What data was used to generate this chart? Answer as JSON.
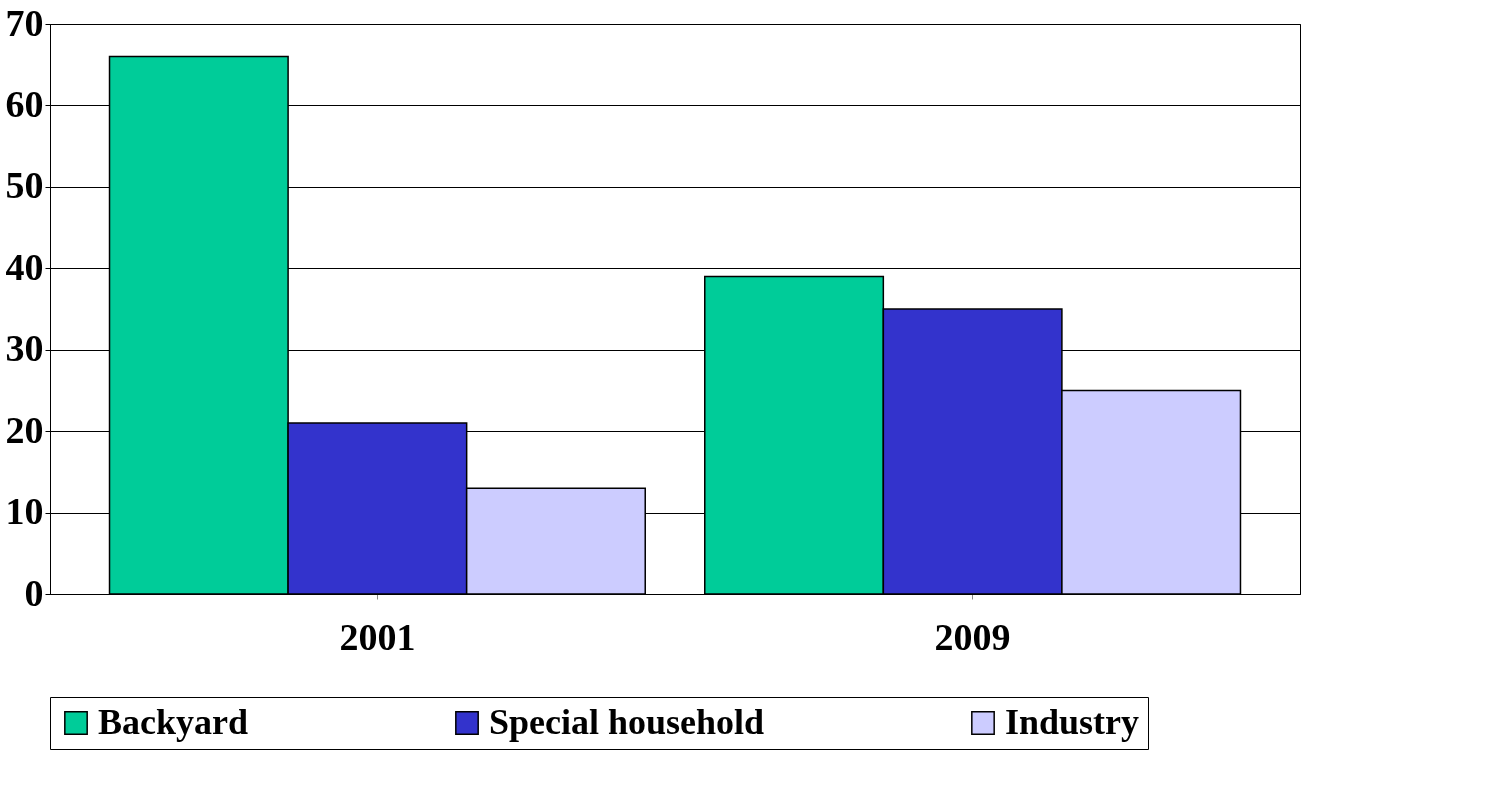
{
  "chart_data": {
    "type": "bar",
    "categories": [
      "2001",
      "2009"
    ],
    "series": [
      {
        "name": "Backyard",
        "color": "#00cc99",
        "values": [
          66,
          39
        ]
      },
      {
        "name": "Special household",
        "color": "#3333cc",
        "values": [
          21,
          35
        ]
      },
      {
        "name": "Industry",
        "color": "#ccccff",
        "values": [
          13,
          25
        ]
      }
    ],
    "ylim": [
      0,
      70
    ],
    "yticks": [
      0,
      10,
      20,
      30,
      40,
      50,
      60,
      70
    ],
    "grid": "y",
    "legend": "bottom"
  }
}
